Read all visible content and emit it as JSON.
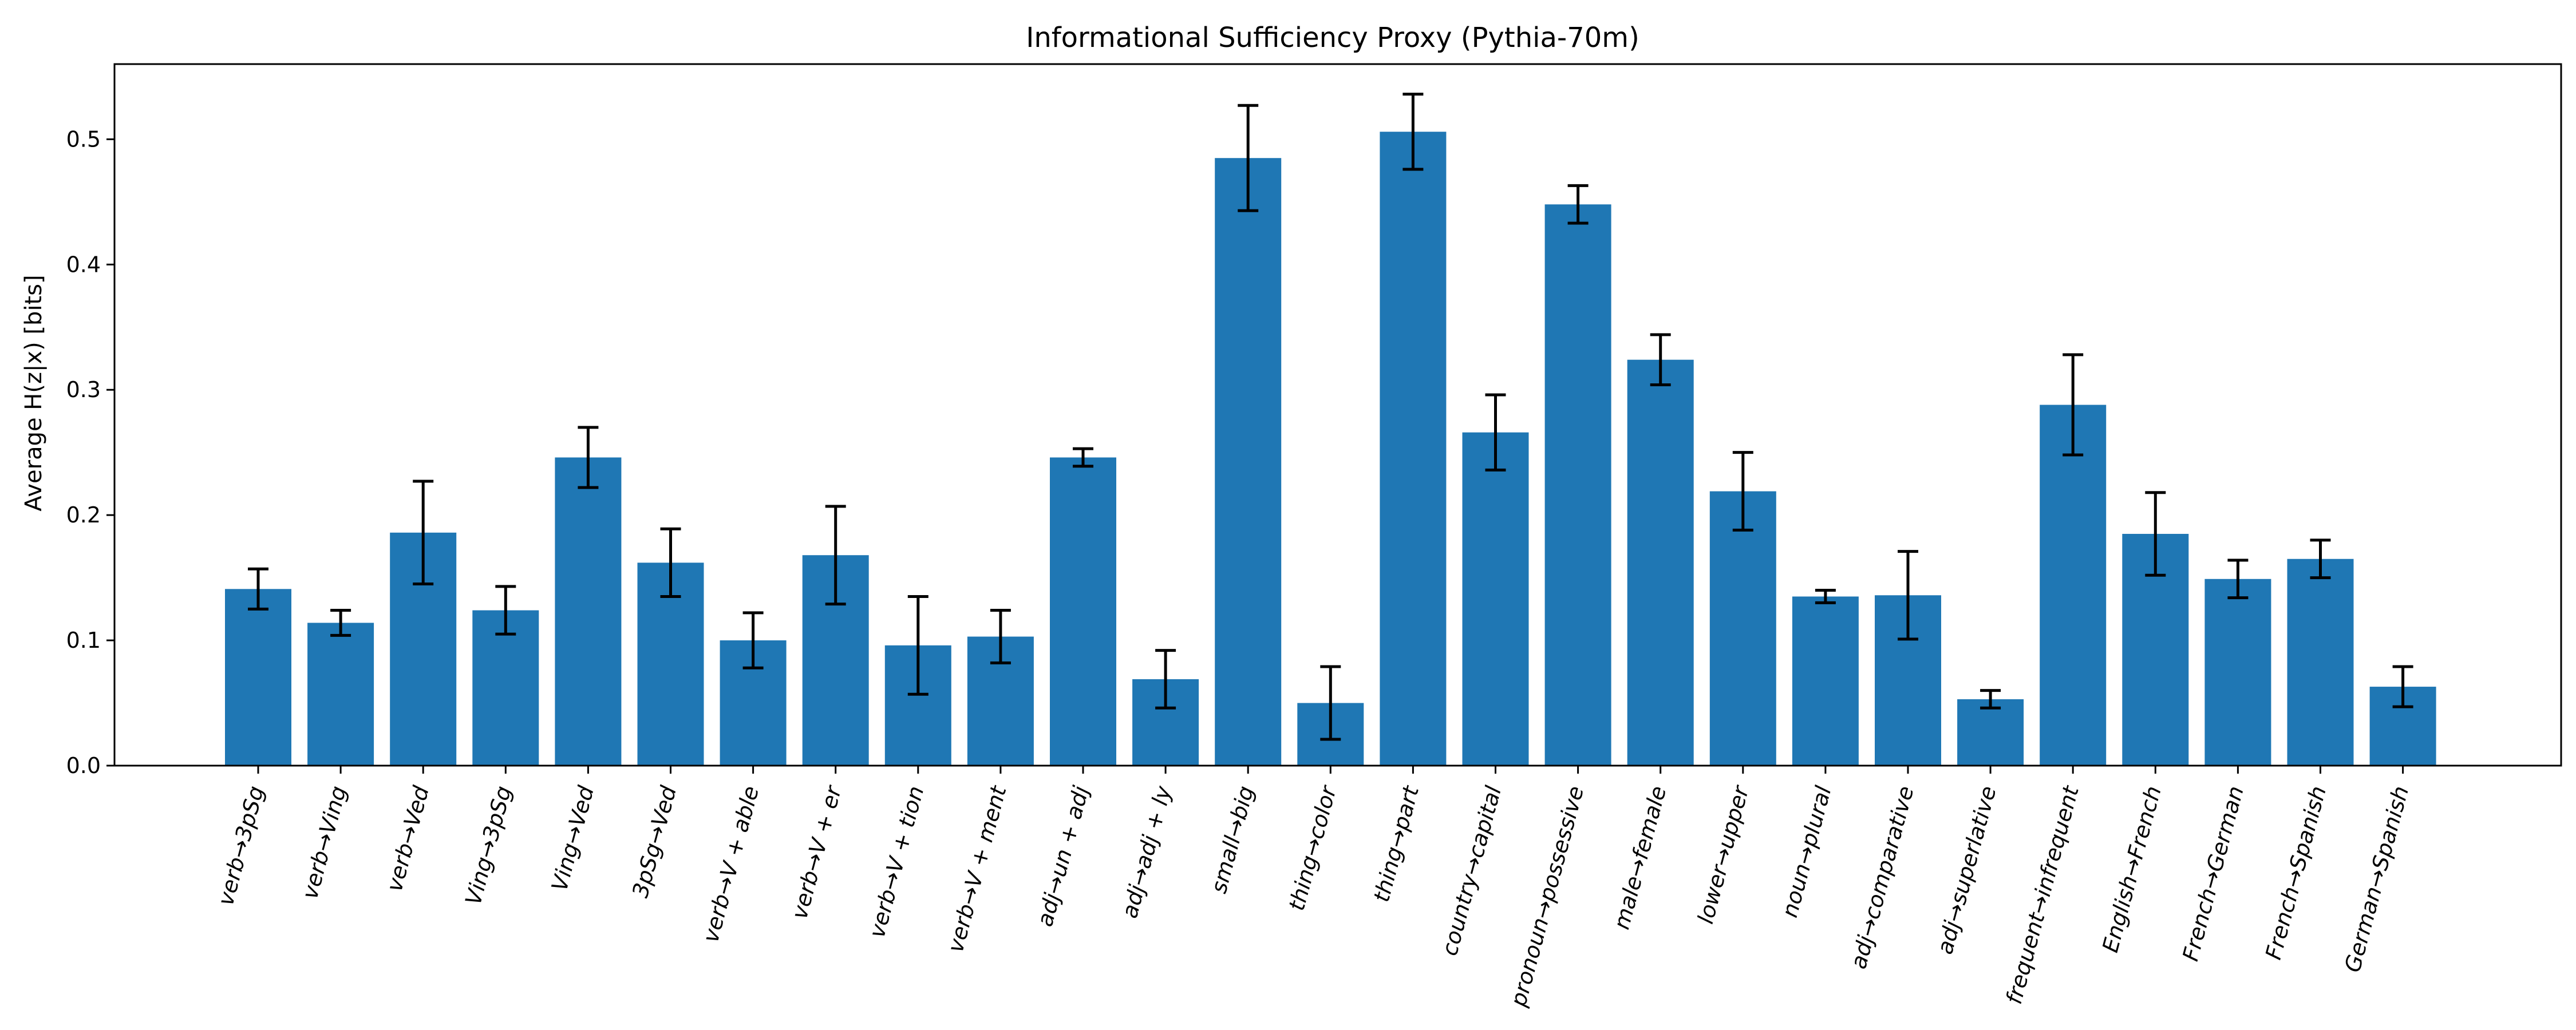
{
  "chart_data": {
    "type": "bar",
    "title": "Informational Sufficiency Proxy (Pythia-70m)",
    "xlabel": "",
    "ylabel": "Average H(z|x) [bits]",
    "ylim": [
      0,
      0.56
    ],
    "yticks": [
      0.0,
      0.1,
      0.2,
      0.3,
      0.4,
      0.5
    ],
    "ytick_labels": [
      "0.0",
      "0.1",
      "0.2",
      "0.3",
      "0.4",
      "0.5"
    ],
    "categories": [
      "verb→3pSg",
      "verb→Ving",
      "verb→Ved",
      "Ving→3pSg",
      "Ving→Ved",
      "3pSg→Ved",
      "verb→V + able",
      "verb→V + er",
      "verb→V + tion",
      "verb→V + ment",
      "adj→un + adj",
      "adj→adj + ly",
      "small→big",
      "thing→color",
      "thing→part",
      "country→capital",
      "pronoun→possessive",
      "male→female",
      "lower→upper",
      "noun→plural",
      "adj→comparative",
      "adj→superlative",
      "frequent→infrequent",
      "English→French",
      "French→German",
      "French→Spanish",
      "German→Spanish"
    ],
    "values": [
      0.141,
      0.114,
      0.186,
      0.124,
      0.246,
      0.162,
      0.1,
      0.168,
      0.096,
      0.103,
      0.246,
      0.069,
      0.485,
      0.05,
      0.506,
      0.266,
      0.448,
      0.324,
      0.219,
      0.135,
      0.136,
      0.053,
      0.288,
      0.185,
      0.149,
      0.165,
      0.063
    ],
    "errors": [
      0.016,
      0.01,
      0.041,
      0.019,
      0.024,
      0.027,
      0.022,
      0.039,
      0.039,
      0.021,
      0.007,
      0.023,
      0.042,
      0.029,
      0.03,
      0.03,
      0.015,
      0.02,
      0.031,
      0.005,
      0.035,
      0.007,
      0.04,
      0.033,
      0.015,
      0.015,
      0.016
    ],
    "bar_color": "#1f77b4",
    "error_color": "#000000"
  }
}
